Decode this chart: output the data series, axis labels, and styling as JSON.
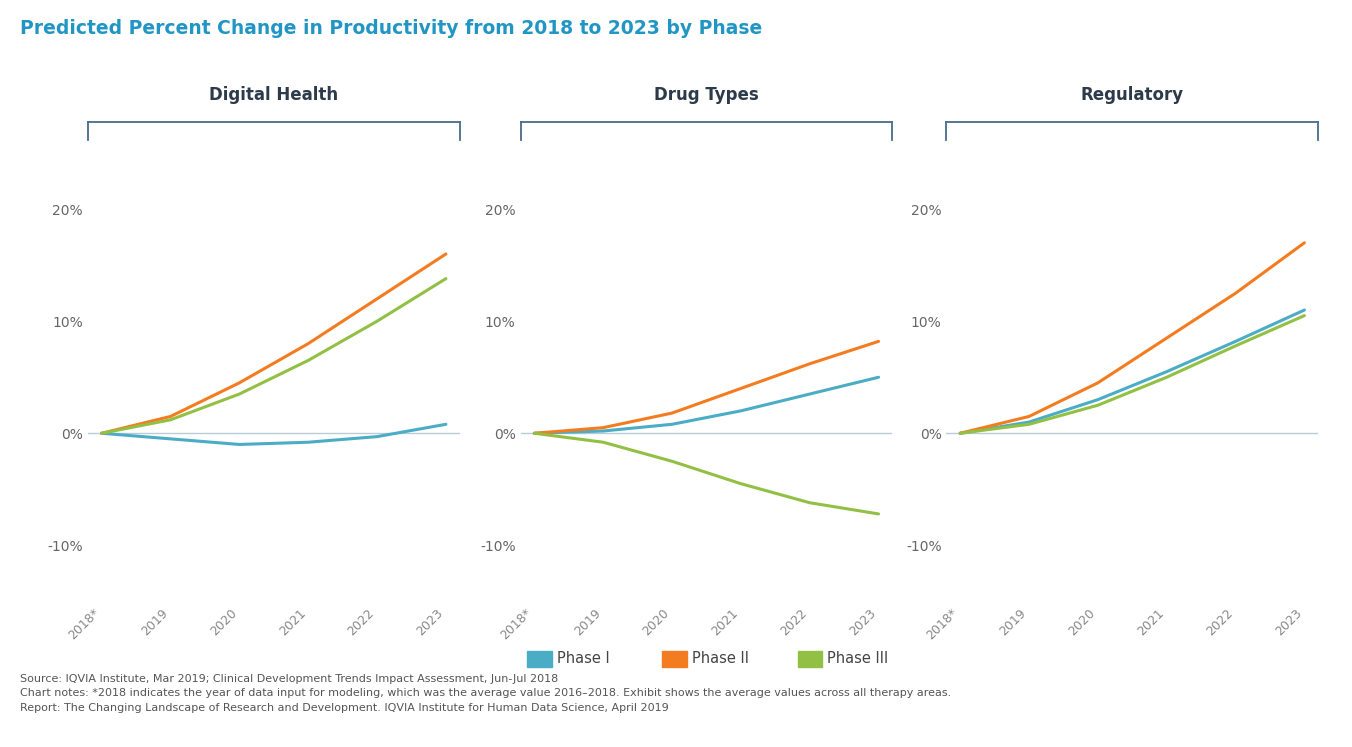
{
  "title": "Predicted Percent Change in Productivity from 2018 to 2023 by Phase",
  "title_color": "#2196c4",
  "panel_titles": [
    "Digital Health",
    "Drug Types",
    "Regulatory"
  ],
  "panel_title_color": "#2d3a4a",
  "x_labels": [
    "2018*",
    "2019",
    "2020",
    "2021",
    "2022",
    "2023"
  ],
  "x_values": [
    0,
    1,
    2,
    3,
    4,
    5
  ],
  "ylim": [
    -15,
    25
  ],
  "yticks": [
    -10,
    0,
    10,
    20
  ],
  "ytick_labels": [
    "-10%",
    "0%",
    "10%",
    "20%"
  ],
  "colors": {
    "phase1": "#4bacc6",
    "phase2": "#f47c20",
    "phase3": "#92c045"
  },
  "digital_health": {
    "phase1": [
      0,
      -0.5,
      -1.0,
      -0.8,
      -0.3,
      0.8
    ],
    "phase2": [
      0,
      1.5,
      4.5,
      8.0,
      12.0,
      16.0
    ],
    "phase3": [
      0,
      1.2,
      3.5,
      6.5,
      10.0,
      13.8
    ]
  },
  "drug_types": {
    "phase1": [
      0,
      0.2,
      0.8,
      2.0,
      3.5,
      5.0
    ],
    "phase2": [
      0,
      0.5,
      1.8,
      4.0,
      6.2,
      8.2
    ],
    "phase3": [
      0,
      -0.8,
      -2.5,
      -4.5,
      -6.2,
      -7.2
    ]
  },
  "regulatory": {
    "phase1": [
      0,
      1.0,
      3.0,
      5.5,
      8.2,
      11.0
    ],
    "phase2": [
      0,
      1.5,
      4.5,
      8.5,
      12.5,
      17.0
    ],
    "phase3": [
      0,
      0.8,
      2.5,
      5.0,
      7.8,
      10.5
    ]
  },
  "legend_labels": [
    "Phase I",
    "Phase II",
    "Phase III"
  ],
  "zero_line_color": "#b8cdd8",
  "source_text_line1": "Source: IQVIA Institute, Mar 2019; Clinical Development Trends Impact Assessment, Jun-Jul 2018",
  "source_text_line2": "Chart notes: *2018 indicates the year of data input for modeling, which was the average value 2016–2018. Exhibit shows the average values across all therapy areas.",
  "source_text_line3": "Report: The Changing Landscape of Research and Development. IQVIA Institute for Human Data Science, April 2019",
  "line_width": 2.2,
  "bracket_color": "#4a6b8a"
}
